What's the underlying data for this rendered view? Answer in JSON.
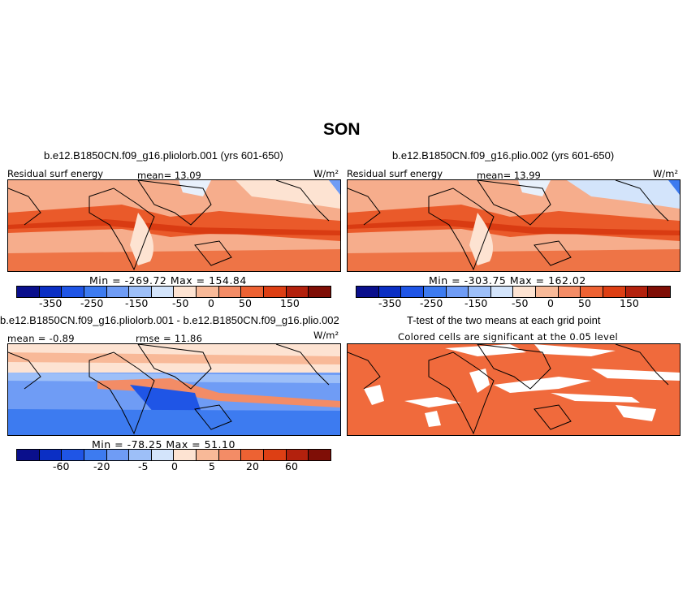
{
  "figure_title": "SON",
  "panels": [
    {
      "title": "b.e12.B1850CN.f09_g16.pliolorb.001 (yrs 601-650)",
      "left_label": "Residual surf energy",
      "center_label": "mean=  13.09",
      "units": "W/m²",
      "minmax": "Min = -269.72  Max = 154.84",
      "ticks": [
        "-350",
        "-250",
        "-150",
        "-50",
        "0",
        "50",
        "150"
      ]
    },
    {
      "title": "b.e12.B1850CN.f09_g16.plio.002 (yrs 601-650)",
      "left_label": "Residual surf energy",
      "center_label": "mean=  13.99",
      "units": "W/m²",
      "minmax": "Min = -303.75  Max = 162.02",
      "ticks": [
        "-350",
        "-250",
        "-150",
        "-50",
        "0",
        "50",
        "150"
      ]
    },
    {
      "title": "b.e12.B1850CN.f09_g16.pliolorb.001 - b.e12.B1850CN.f09_g16.plio.002",
      "left_label": "mean =  -0.89",
      "center_label": "rmse =  11.86",
      "units": "W/m²",
      "minmax": "Min = -78.25  Max =  51.10",
      "ticks": [
        "-60",
        "-20",
        "-5",
        "0",
        "5",
        "20",
        "60"
      ]
    },
    {
      "title": "T-test of the two means at each grid point",
      "subtitle": "Colored cells are significant at the 0.05 level"
    }
  ],
  "colors": {
    "colorbar": [
      "#0a0f8c",
      "#0b2fc4",
      "#1f55e6",
      "#3d7bf0",
      "#6f9cf5",
      "#9dbff8",
      "#d3e4fb",
      "#fde3d2",
      "#f8b998",
      "#f38c66",
      "#ed6233",
      "#dd3f14",
      "#b3210d",
      "#7f0e06"
    ],
    "significance": "#f06a3c"
  }
}
